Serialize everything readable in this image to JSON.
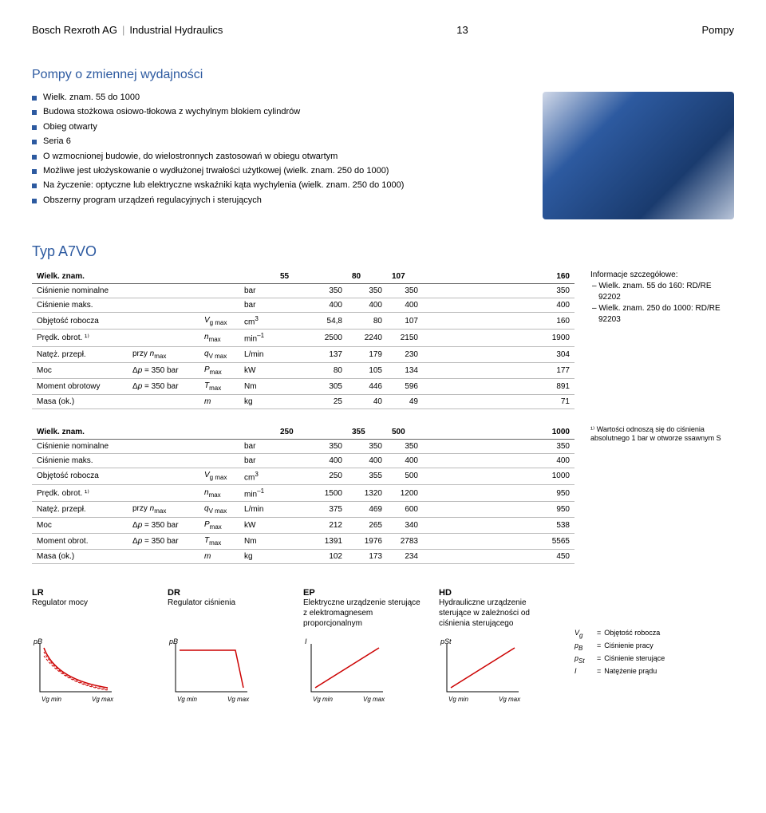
{
  "header": {
    "company": "Bosch Rexroth AG",
    "division": "Industrial Hydraulics",
    "page": "13",
    "section": "Pompy"
  },
  "subtitle": "Pompy o zmiennej wydajności",
  "bullets": [
    "Wielk. znam. 55 do 1000",
    "Budowa stożkowa osiowo-tłokowa z wychylnym blokiem cylindrów",
    "Obieg otwarty",
    "Seria 6",
    "O wzmocnionej budowie, do wielostronnych zastosowań w obiegu otwartym",
    "Możliwe jest ułożyskowanie o wydłużonej trwałości użytkowej (wielk. znam. 250 do 1000)",
    "Na życzenie: optyczne lub elektryczne wskaźniki kąta wychylenia (wielk. znam. 250 do 1000)",
    "Obszerny program urządzeń regulacyjnych i sterujących"
  ],
  "type_title": "Typ A7VO",
  "table1": {
    "header": {
      "label": "Wielk. znam.",
      "cols": [
        "55",
        "80",
        "107",
        "160"
      ]
    },
    "rows": [
      {
        "label": "Ciśnienie nominalne",
        "cond": "",
        "sym": "",
        "unit": "bar",
        "vals": [
          "350",
          "350",
          "350",
          "350"
        ]
      },
      {
        "label": "Ciśnienie maks.",
        "cond": "",
        "sym": "",
        "unit": "bar",
        "vals": [
          "400",
          "400",
          "400",
          "400"
        ]
      },
      {
        "label": "Objętość robocza",
        "cond": "",
        "sym": "V_g max",
        "unit": "cm³",
        "vals": [
          "54,8",
          "80",
          "107",
          "160"
        ]
      },
      {
        "label": "Prędk. obrot. ¹⁾",
        "cond": "",
        "sym": "n_max",
        "unit": "min⁻¹",
        "vals": [
          "2500",
          "2240",
          "2150",
          "1900"
        ]
      },
      {
        "label": "Natęż. przepł.",
        "cond": "przy n_max",
        "sym": "q_V max",
        "unit": "L/min",
        "vals": [
          "137",
          "179",
          "230",
          "304"
        ]
      },
      {
        "label": "Moc",
        "cond": "Δp = 350 bar",
        "sym": "P_max",
        "unit": "kW",
        "vals": [
          "80",
          "105",
          "134",
          "177"
        ]
      },
      {
        "label": "Moment obrotowy",
        "cond": "Δp = 350 bar",
        "sym": "T_max",
        "unit": "Nm",
        "vals": [
          "305",
          "446",
          "596",
          "891"
        ]
      },
      {
        "label": "Masa (ok.)",
        "cond": "",
        "sym": "m",
        "unit": "kg",
        "vals": [
          "25",
          "40",
          "49",
          "71"
        ]
      }
    ]
  },
  "table2": {
    "header": {
      "label": "Wielk. znam.",
      "cols": [
        "250",
        "355",
        "500",
        "1000"
      ]
    },
    "rows": [
      {
        "label": "Ciśnienie nominalne",
        "cond": "",
        "sym": "",
        "unit": "bar",
        "vals": [
          "350",
          "350",
          "350",
          "350"
        ]
      },
      {
        "label": "Ciśnienie maks.",
        "cond": "",
        "sym": "",
        "unit": "bar",
        "vals": [
          "400",
          "400",
          "400",
          "400"
        ]
      },
      {
        "label": "Objętość robocza",
        "cond": "",
        "sym": "V_g max",
        "unit": "cm³",
        "vals": [
          "250",
          "355",
          "500",
          "1000"
        ]
      },
      {
        "label": "Prędk. obrot. ¹⁾",
        "cond": "",
        "sym": "n_max",
        "unit": "min⁻¹",
        "vals": [
          "1500",
          "1320",
          "1200",
          "950"
        ]
      },
      {
        "label": "Natęż. przepł.",
        "cond": "przy n_max",
        "sym": "q_V max",
        "unit": "L/min",
        "vals": [
          "375",
          "469",
          "600",
          "950"
        ]
      },
      {
        "label": "Moc",
        "cond": "Δp = 350 bar",
        "sym": "P_max",
        "unit": "kW",
        "vals": [
          "212",
          "265",
          "340",
          "538"
        ]
      },
      {
        "label": "Moment obrot.",
        "cond": "Δp = 350 bar",
        "sym": "T_max",
        "unit": "Nm",
        "vals": [
          "1391",
          "1976",
          "2783",
          "5565"
        ]
      },
      {
        "label": "Masa (ok.)",
        "cond": "",
        "sym": "m",
        "unit": "kg",
        "vals": [
          "102",
          "173",
          "234",
          "450"
        ]
      }
    ]
  },
  "info": {
    "title": "Informacje szczegółowe:",
    "lines": [
      "– Wielk. znam. 55 do 160: RD/RE 92202",
      "– Wielk. znam. 250 do 1000: RD/RE 92203"
    ]
  },
  "footnote": "¹⁾ Wartości odnoszą się do ciśnienia absolutnego 1 bar w otworze ssawnym S",
  "regulators": [
    {
      "code": "LR",
      "desc": "Regulator mocy",
      "graph": "lr"
    },
    {
      "code": "DR",
      "desc": "Regulator ciśnienia",
      "graph": "dr"
    },
    {
      "code": "EP",
      "desc": "Elektryczne urządzenie sterujące z elektromagnesem proporcjonalnym",
      "graph": "ep"
    },
    {
      "code": "HD",
      "desc": "Hydrauliczne urządzenie sterujące w zależności od ciśnienia sterującego",
      "graph": "hd"
    }
  ],
  "legend": [
    {
      "sym": "V_g",
      "desc": "Objętość robocza"
    },
    {
      "sym": "p_B",
      "desc": "Ciśnienie pracy"
    },
    {
      "sym": "p_St",
      "desc": "Ciśnienie sterujące"
    },
    {
      "sym": "I",
      "desc": "Natężenie prądu"
    }
  ],
  "graph_axes": {
    "y": "p_B",
    "x_min": "V_g min",
    "x_max": "V_g max",
    "ep_y": "I",
    "hd_y": "p_St"
  },
  "colors": {
    "accent": "#2d5aa0",
    "graph_line": "#cc0000",
    "graph_dash": "#cc0000",
    "axis": "#000000"
  }
}
